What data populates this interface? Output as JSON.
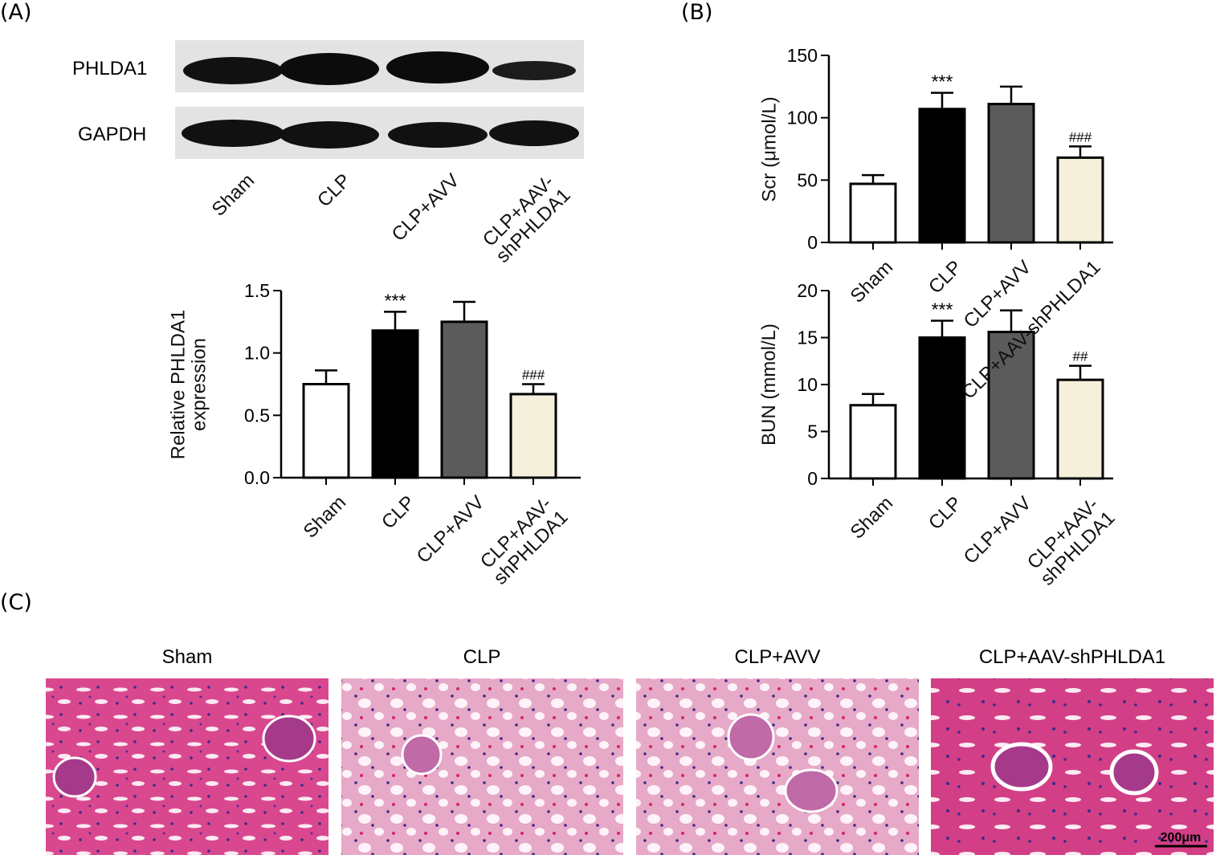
{
  "figure": {
    "panels": [
      "(A)",
      "(B)",
      "(C)"
    ],
    "blot": {
      "rows": [
        "PHLDA1",
        "GAPDH"
      ],
      "lanes": [
        "Sham",
        "CLP",
        "CLP+AVV",
        "CLP+AAV-\nshPHLDA1"
      ]
    },
    "histology": {
      "titles": [
        "Sham",
        "CLP",
        "CLP+AVV",
        "CLP+AAV-shPHLDA1"
      ],
      "scale_bar": "200μm"
    }
  },
  "chart_data": [
    {
      "type": "bar",
      "ylabel": "Relative PHLDA1\nexpression",
      "categories": [
        "Sham",
        "CLP",
        "CLP+AVV",
        "CLP+AAV-\nshPHLDA1"
      ],
      "values": [
        0.75,
        1.18,
        1.25,
        0.67
      ],
      "errors": [
        0.11,
        0.15,
        0.16,
        0.08
      ],
      "annotations": [
        null,
        "***",
        null,
        "###"
      ],
      "colors": [
        "#ffffff",
        "#000000",
        "#5b5b5b",
        "#f4f0dc"
      ],
      "ylim": [
        0,
        1.5
      ],
      "yticks": [
        {
          "value": 0,
          "label": "0.0"
        },
        {
          "value": 0.5,
          "label": "0.5"
        },
        {
          "value": 1,
          "label": "1.0"
        },
        {
          "value": 1.5,
          "label": "1.5"
        }
      ]
    },
    {
      "type": "bar",
      "ylabel": "Scr (μmol/L)",
      "categories": [
        "Sham",
        "CLP",
        "CLP+AVV",
        "CLP+AAV-shPHLDA1"
      ],
      "values": [
        47,
        107,
        111,
        68
      ],
      "errors": [
        7,
        13,
        14,
        9
      ],
      "annotations": [
        null,
        "***",
        null,
        "###"
      ],
      "colors": [
        "#ffffff",
        "#000000",
        "#5b5b5b",
        "#f4f0dc"
      ],
      "ylim": [
        0,
        150
      ],
      "yticks": [
        0,
        50,
        100,
        150
      ]
    },
    {
      "type": "bar",
      "ylabel": "BUN (mmol/L)",
      "categories": [
        "Sham",
        "CLP",
        "CLP+AVV",
        "CLP+AAV-\nshPHLDA1"
      ],
      "values": [
        7.8,
        15.0,
        15.6,
        10.5
      ],
      "errors": [
        1.2,
        1.8,
        2.3,
        1.5
      ],
      "annotations": [
        null,
        "***",
        null,
        "##"
      ],
      "colors": [
        "#ffffff",
        "#000000",
        "#5b5b5b",
        "#f4f0dc"
      ],
      "ylim": [
        0,
        20
      ],
      "yticks": [
        0,
        5,
        10,
        15,
        20
      ]
    }
  ]
}
